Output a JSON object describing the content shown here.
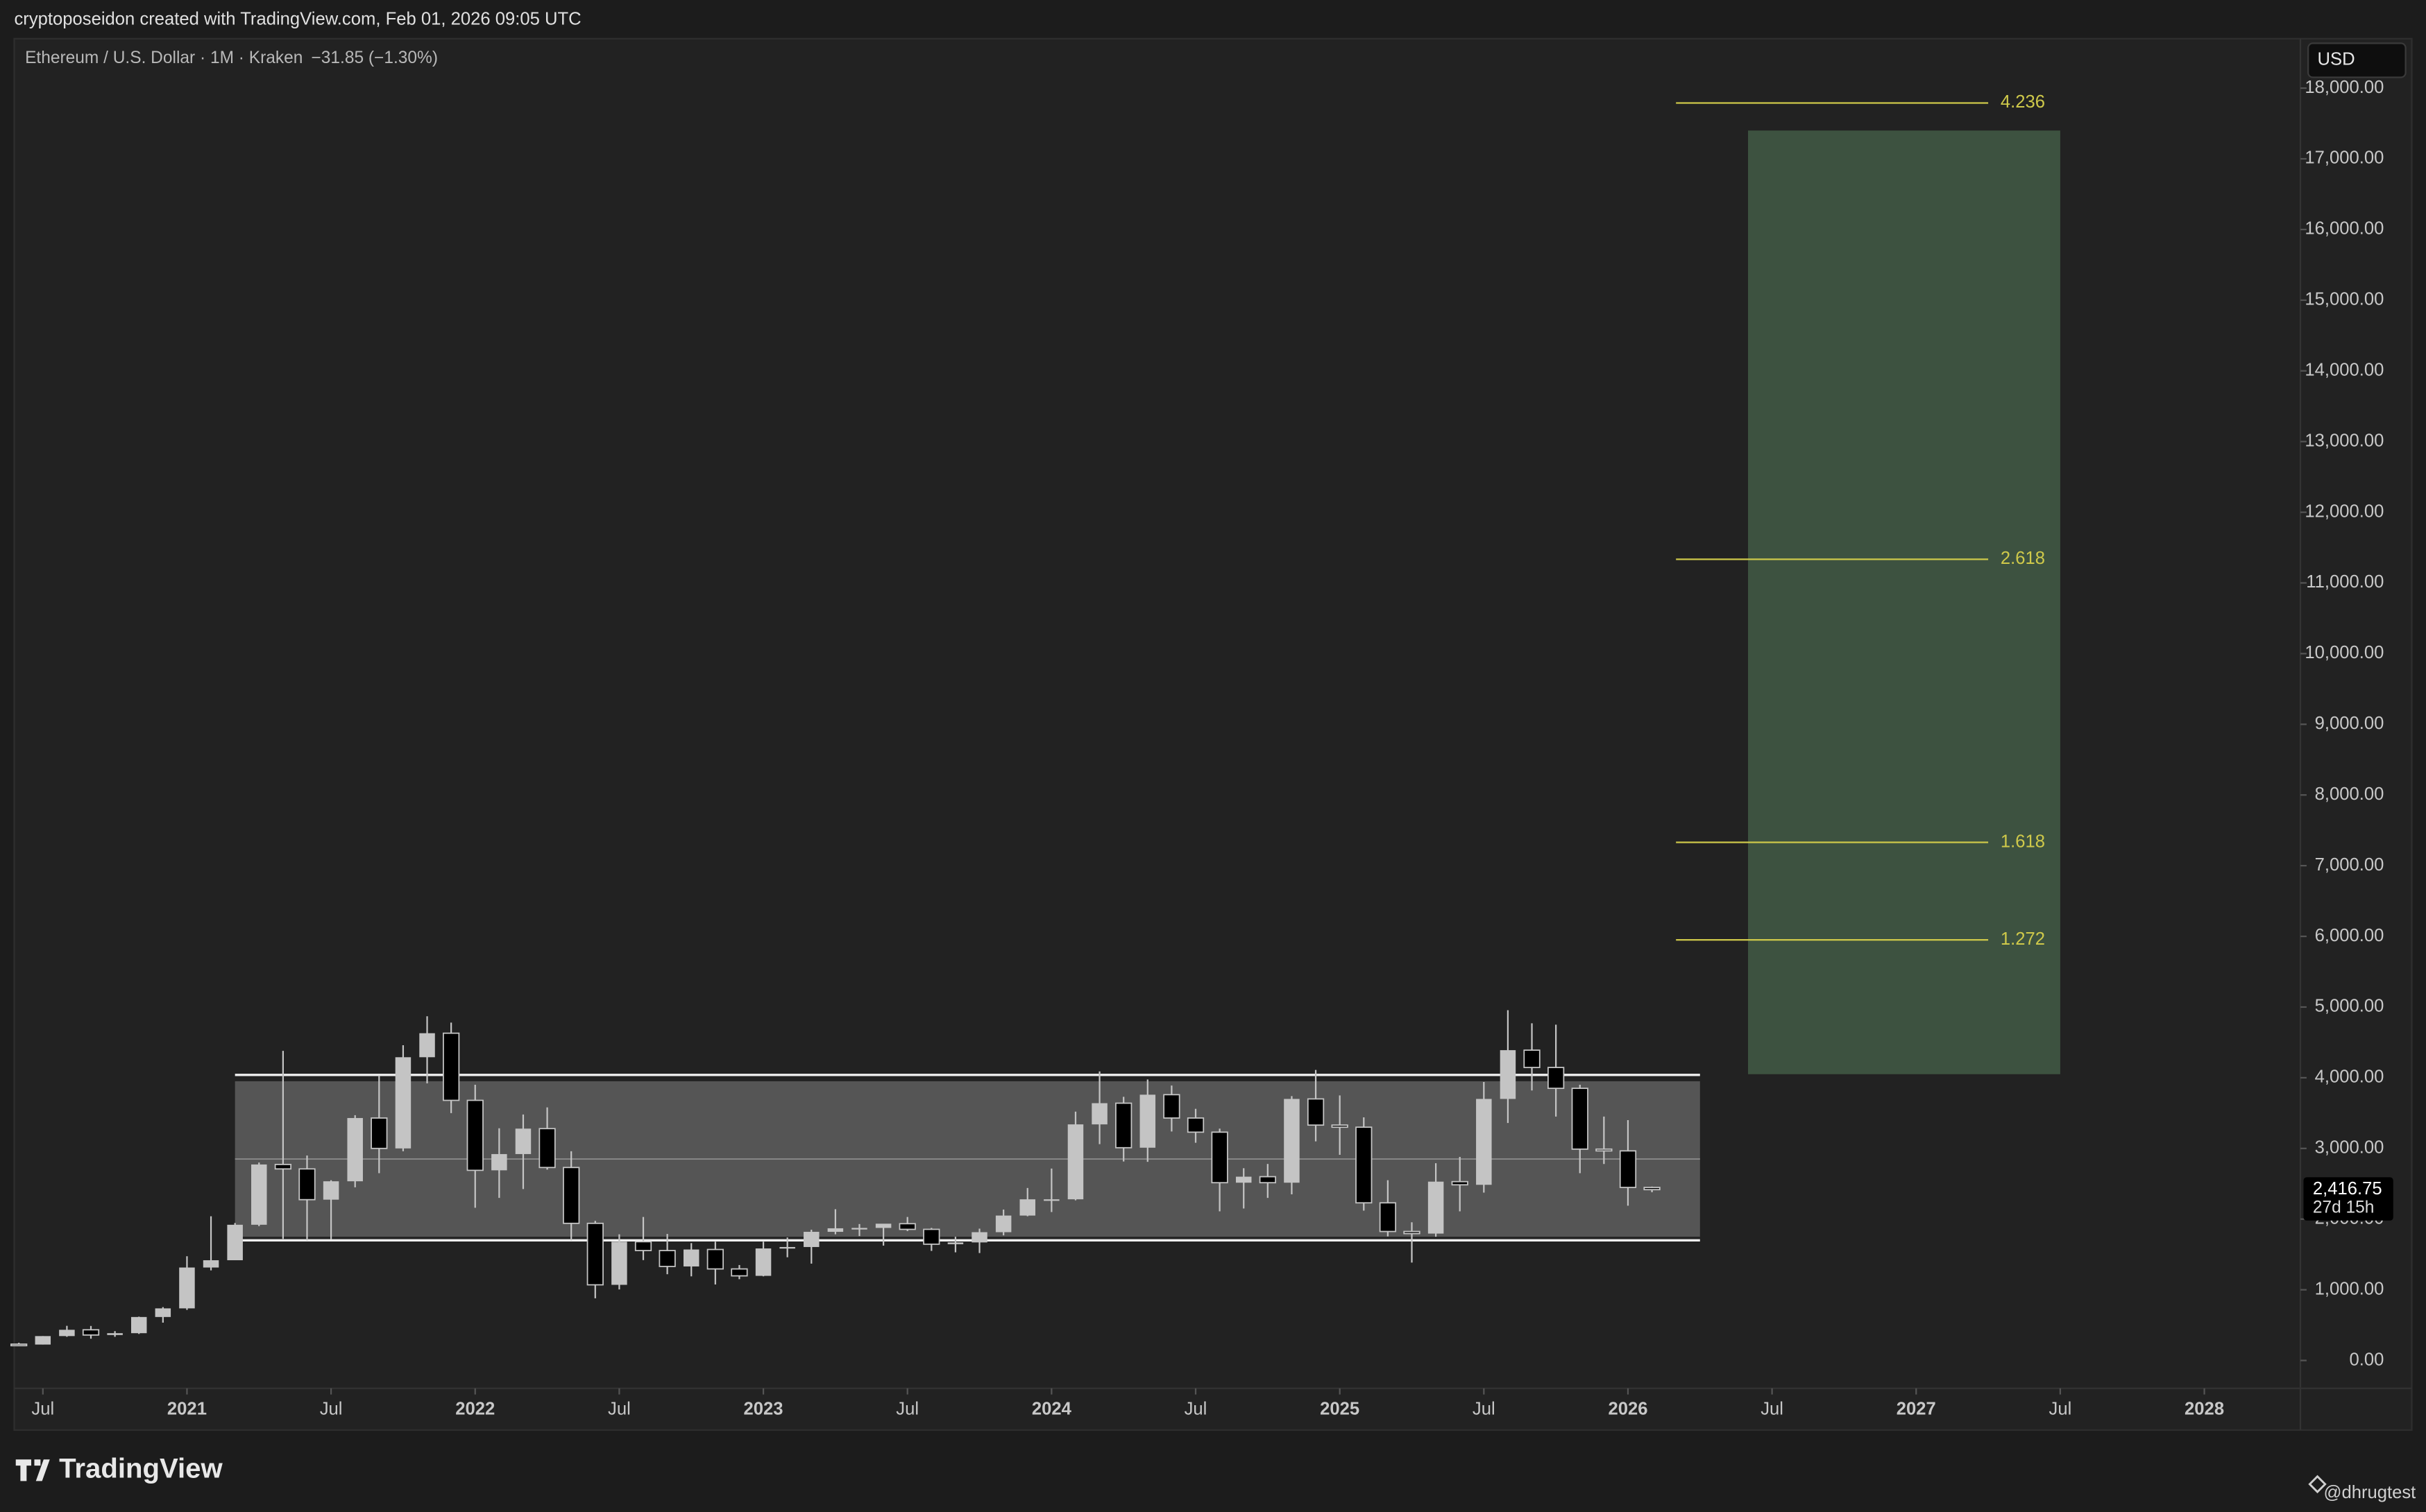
{
  "header": {
    "credit": "cryptoposeidon created with TradingView.com, Feb 01, 2026 09:05 UTC",
    "currency": "USD"
  },
  "footer": {
    "brand": "TradingView",
    "user": "@dhrugtest"
  },
  "chart_data": {
    "type": "candlestick",
    "title": "Ethereum / U.S. Dollar · 1M · Kraken",
    "subtitle": "−31.85 (−1.30%)",
    "x": [
      "2020-06",
      "2020-07",
      "2020-08",
      "2020-09",
      "2020-10",
      "2020-11",
      "2020-12",
      "2021-01",
      "2021-02",
      "2021-03",
      "2021-04",
      "2021-05",
      "2021-06",
      "2021-07",
      "2021-08",
      "2021-09",
      "2021-10",
      "2021-11",
      "2021-12",
      "2022-01",
      "2022-02",
      "2022-03",
      "2022-04",
      "2022-05",
      "2022-06",
      "2022-07",
      "2022-08",
      "2022-09",
      "2022-10",
      "2022-11",
      "2022-12",
      "2023-01",
      "2023-02",
      "2023-03",
      "2023-04",
      "2023-05",
      "2023-06",
      "2023-07",
      "2023-08",
      "2023-09",
      "2023-10",
      "2023-11",
      "2023-12",
      "2024-01",
      "2024-02",
      "2024-03",
      "2024-04",
      "2024-05",
      "2024-06",
      "2024-07",
      "2024-08",
      "2024-09",
      "2024-10",
      "2024-11",
      "2024-12",
      "2025-01",
      "2025-02",
      "2025-03",
      "2025-04",
      "2025-05",
      "2025-06",
      "2025-07",
      "2025-08",
      "2025-09",
      "2025-10",
      "2025-11",
      "2025-12",
      "2026-01",
      "2026-02"
    ],
    "open": [
      231,
      225,
      345,
      434,
      360,
      386,
      615,
      737,
      1315,
      1418,
      1920,
      2773,
      2710,
      2275,
      2535,
      3430,
      3000,
      4290,
      4630,
      3680,
      2690,
      2920,
      3280,
      2730,
      1940,
      1070,
      1680,
      1555,
      1330,
      1570,
      1295,
      1197,
      1585,
      1605,
      1820,
      1870,
      1875,
      1935,
      1855,
      1645,
      1670,
      1815,
      2050,
      2280,
      2280,
      3340,
      3640,
      3010,
      3760,
      3430,
      3230,
      2515,
      2600,
      2515,
      3700,
      3330,
      3300,
      2230,
      1825,
      1795,
      2530,
      2485,
      3700,
      4390,
      4145,
      3850,
      2990,
      2965,
      2448
    ],
    "high": [
      250,
      345,
      490,
      488,
      415,
      620,
      755,
      1475,
      2040,
      1945,
      2800,
      4380,
      2900,
      2550,
      3470,
      4030,
      4460,
      4870,
      4780,
      3900,
      3285,
      3480,
      3580,
      2960,
      1975,
      1785,
      2030,
      1790,
      1660,
      1680,
      1350,
      1680,
      1740,
      1850,
      2140,
      1930,
      1930,
      2030,
      1875,
      1750,
      1865,
      2135,
      2440,
      2715,
      3520,
      4090,
      3730,
      3975,
      3890,
      3560,
      3280,
      2720,
      2780,
      3740,
      4110,
      3750,
      3440,
      2550,
      1955,
      2790,
      2880,
      3940,
      4955,
      4770,
      4750,
      3900,
      3450,
      3400,
      2460
    ],
    "low": [
      215,
      225,
      335,
      308,
      335,
      375,
      535,
      715,
      1275,
      1425,
      1900,
      1720,
      1700,
      1715,
      2450,
      2650,
      2960,
      3920,
      3500,
      2160,
      2300,
      2425,
      2700,
      1700,
      880,
      1005,
      1420,
      1220,
      1190,
      1075,
      1150,
      1190,
      1460,
      1370,
      1785,
      1760,
      1625,
      1830,
      1550,
      1530,
      1520,
      1770,
      2040,
      2100,
      2265,
      3060,
      2815,
      2810,
      3240,
      3080,
      2110,
      2150,
      2300,
      2350,
      3100,
      2910,
      2120,
      1755,
      1385,
      1750,
      2110,
      2375,
      3360,
      3820,
      3450,
      2650,
      2780,
      2190,
      2380
    ],
    "close": [
      225,
      345,
      434,
      360,
      386,
      615,
      737,
      1315,
      1418,
      1920,
      2773,
      2710,
      2275,
      2535,
      3430,
      3000,
      4290,
      4630,
      3680,
      2690,
      2920,
      3280,
      2730,
      1940,
      1070,
      1680,
      1555,
      1330,
      1570,
      1295,
      1197,
      1585,
      1605,
      1820,
      1870,
      1875,
      1935,
      1855,
      1645,
      1670,
      1815,
      2050,
      2280,
      2280,
      3340,
      3640,
      3010,
      3760,
      3430,
      3230,
      2515,
      2600,
      2515,
      3700,
      3330,
      3300,
      2230,
      1825,
      1795,
      2530,
      2485,
      3700,
      4390,
      4145,
      3850,
      2990,
      2965,
      2448,
      2416.75
    ],
    "up_color": "#c4c4c4",
    "down_color": "#000000",
    "last_price": {
      "value": 2416.75,
      "label": "2,416.75"
    },
    "countdown": "27d 15h",
    "xlim": [
      "2020-06",
      "2028-05"
    ],
    "xticks": [
      {
        "value": "2020-07",
        "label": "Jul"
      },
      {
        "value": "2021-01",
        "label": "2021"
      },
      {
        "value": "2021-07",
        "label": "Jul"
      },
      {
        "value": "2022-01",
        "label": "2022"
      },
      {
        "value": "2022-07",
        "label": "Jul"
      },
      {
        "value": "2023-01",
        "label": "2023"
      },
      {
        "value": "2023-07",
        "label": "Jul"
      },
      {
        "value": "2024-01",
        "label": "2024"
      },
      {
        "value": "2024-07",
        "label": "Jul"
      },
      {
        "value": "2025-01",
        "label": "2025"
      },
      {
        "value": "2025-07",
        "label": "Jul"
      },
      {
        "value": "2026-01",
        "label": "2026"
      },
      {
        "value": "2026-07",
        "label": "Jul"
      },
      {
        "value": "2027-01",
        "label": "2027"
      },
      {
        "value": "2027-07",
        "label": "Jul"
      },
      {
        "value": "2028-01",
        "label": "2028"
      }
    ],
    "ylim": [
      -394,
      18700
    ],
    "yticks": [
      {
        "value": 0,
        "label": "0.00"
      },
      {
        "value": 1000,
        "label": "1,000.00"
      },
      {
        "value": 2000,
        "label": "2,000.00"
      },
      {
        "value": 3000,
        "label": "3,000.00"
      },
      {
        "value": 4000,
        "label": "4,000.00"
      },
      {
        "value": 5000,
        "label": "5,000.00"
      },
      {
        "value": 6000,
        "label": "6,000.00"
      },
      {
        "value": 7000,
        "label": "7,000.00"
      },
      {
        "value": 8000,
        "label": "8,000.00"
      },
      {
        "value": 9000,
        "label": "9,000.00"
      },
      {
        "value": 10000,
        "label": "10,000.00"
      },
      {
        "value": 11000,
        "label": "11,000.00"
      },
      {
        "value": 12000,
        "label": "12,000.00"
      },
      {
        "value": 13000,
        "label": "13,000.00"
      },
      {
        "value": 14000,
        "label": "14,000.00"
      },
      {
        "value": 15000,
        "label": "15,000.00"
      },
      {
        "value": 16000,
        "label": "16,000.00"
      },
      {
        "value": 17000,
        "label": "17,000.00"
      },
      {
        "value": 18000,
        "label": "18,000.00"
      }
    ],
    "range_box": {
      "x": [
        "2021-03",
        "2026-04"
      ],
      "top": 3950,
      "bottom": 1750,
      "mid": 2850,
      "upper_line": 4040,
      "lower_line": 1700,
      "color": "#555555"
    },
    "target_box": {
      "x": [
        "2026-06",
        "2027-07"
      ],
      "top": 17400,
      "bottom": 4050,
      "color": "#3d5240"
    },
    "fib_levels": {
      "x": [
        "2026-03",
        "2027-04"
      ],
      "color": "#cfc94a",
      "levels": [
        {
          "label": "4.236",
          "price": 17790
        },
        {
          "label": "2.618",
          "price": 11335
        },
        {
          "label": "1.618",
          "price": 7330
        },
        {
          "label": "1.272",
          "price": 5950
        }
      ]
    }
  }
}
